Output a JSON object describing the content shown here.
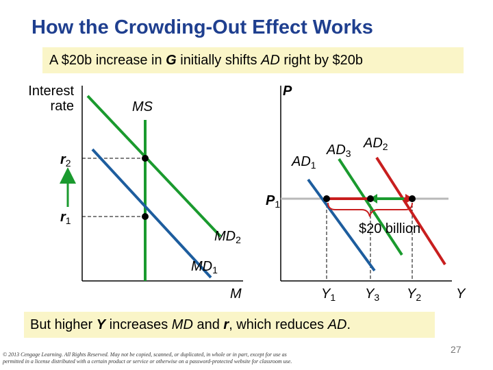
{
  "title": "How the Crowding-Out Effect Works",
  "subtitle": {
    "part1": "A $20b increase in ",
    "var1": "G",
    "part2": " initially shifts ",
    "var2": "AD",
    "part3": " right by $20b"
  },
  "money_market": {
    "y_axis_line1": "Interest",
    "y_axis_line2": "rate",
    "x_axis": "M",
    "supply": "MS",
    "demand1": "MD",
    "demand1_sub": "1",
    "demand2": "MD",
    "demand2_sub": "2",
    "rate1": "r",
    "rate1_sub": "1",
    "rate2": "r",
    "rate2_sub": "2"
  },
  "goods_market": {
    "y_axis": "P",
    "x_axis": "Y",
    "price1": "P",
    "price1_sub": "1",
    "ad1": "AD",
    "ad1_sub": "1",
    "ad2": "AD",
    "ad2_sub": "2",
    "ad3": "AD",
    "ad3_sub": "3",
    "y1": "Y",
    "y1_sub": "1",
    "y2": "Y",
    "y2_sub": "2",
    "y3": "Y",
    "y3_sub": "3",
    "shift_label": "$20 billion"
  },
  "bottom": {
    "part1": "But higher ",
    "var1": "Y",
    "part2": " increases ",
    "var2": "MD",
    "part3": " and ",
    "var3": "r",
    "part4": ", which reduces ",
    "var4": "AD",
    "part5": "."
  },
  "copyright": "© 2013 Cengage Learning. All Rights Reserved. May not be copied, scanned, or duplicated, in whole or in part, except for use as permitted in a license distributed with a certain product or service or otherwise on a password-protected website for classroom use.",
  "page_number": "27",
  "colors": {
    "title": "#1f3f8f",
    "ms": "#1a9a2e",
    "md": "#1d5d9e",
    "ad1": "#1d5d9e",
    "ad3": "#1a9a2e",
    "ad2": "#c81e1e",
    "highlight": "#faf5c8"
  }
}
